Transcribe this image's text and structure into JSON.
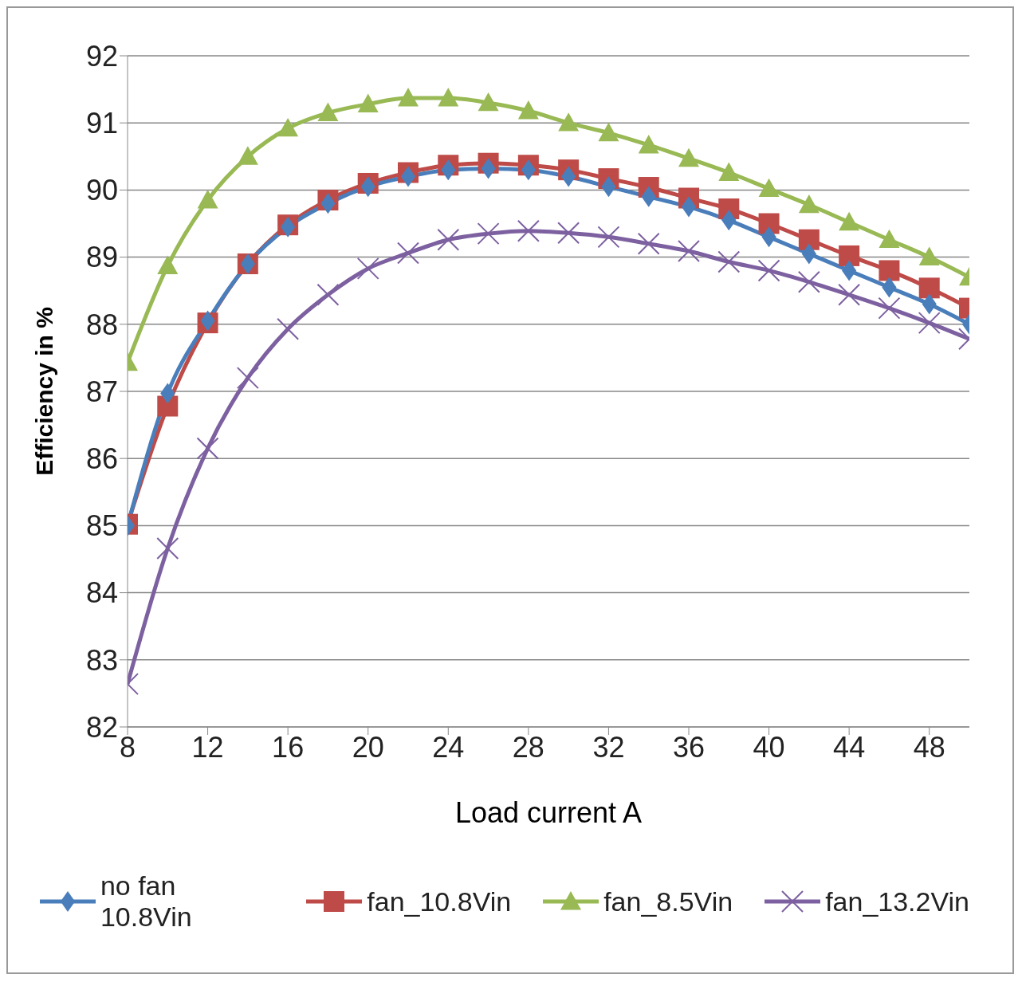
{
  "chart_data": {
    "type": "line",
    "xlabel": "Load current A",
    "ylabel": "Efficiency in %",
    "x": [
      8,
      10,
      12,
      14,
      16,
      18,
      20,
      22,
      24,
      26,
      28,
      30,
      32,
      34,
      36,
      38,
      40,
      42,
      44,
      46,
      48,
      50
    ],
    "xlim": [
      8,
      50
    ],
    "xticks": [
      8,
      12,
      16,
      20,
      24,
      28,
      32,
      36,
      40,
      44,
      48
    ],
    "ylim": [
      82,
      92
    ],
    "yticks": [
      82,
      83,
      84,
      85,
      86,
      87,
      88,
      89,
      90,
      91,
      92
    ],
    "grid": "y",
    "legend": "bottom",
    "series": [
      {
        "name": "no fan 10.8Vin",
        "color": "#4a7ebb",
        "marker": "diamond",
        "values": [
          85.0,
          86.97,
          88.05,
          88.9,
          89.45,
          89.8,
          90.05,
          90.2,
          90.3,
          90.32,
          90.3,
          90.2,
          90.05,
          89.9,
          89.75,
          89.55,
          89.3,
          89.05,
          88.8,
          88.55,
          88.3,
          88.0
        ]
      },
      {
        "name": "fan_10.8Vin",
        "color": "#be4b48",
        "marker": "square",
        "values": [
          85.02,
          86.78,
          88.02,
          88.9,
          89.48,
          89.85,
          90.1,
          90.26,
          90.37,
          90.4,
          90.37,
          90.3,
          90.17,
          90.04,
          89.88,
          89.72,
          89.5,
          89.26,
          89.02,
          88.8,
          88.54,
          88.24
        ]
      },
      {
        "name": "fan_8.5Vin",
        "color": "#98b954",
        "marker": "triangle",
        "values": [
          87.43,
          88.87,
          89.85,
          90.5,
          90.92,
          91.15,
          91.28,
          91.37,
          91.37,
          91.3,
          91.18,
          91.0,
          90.85,
          90.67,
          90.47,
          90.26,
          90.02,
          89.78,
          89.52,
          89.26,
          89.0,
          88.7
        ]
      },
      {
        "name": "fan_13.2Vin",
        "color": "#7d60a0",
        "marker": "cross",
        "values": [
          82.64,
          84.66,
          86.15,
          87.2,
          87.93,
          88.44,
          88.83,
          89.06,
          89.26,
          89.35,
          89.39,
          89.36,
          89.3,
          89.2,
          89.09,
          88.93,
          88.8,
          88.63,
          88.44,
          88.24,
          88.02,
          87.78
        ]
      }
    ]
  }
}
